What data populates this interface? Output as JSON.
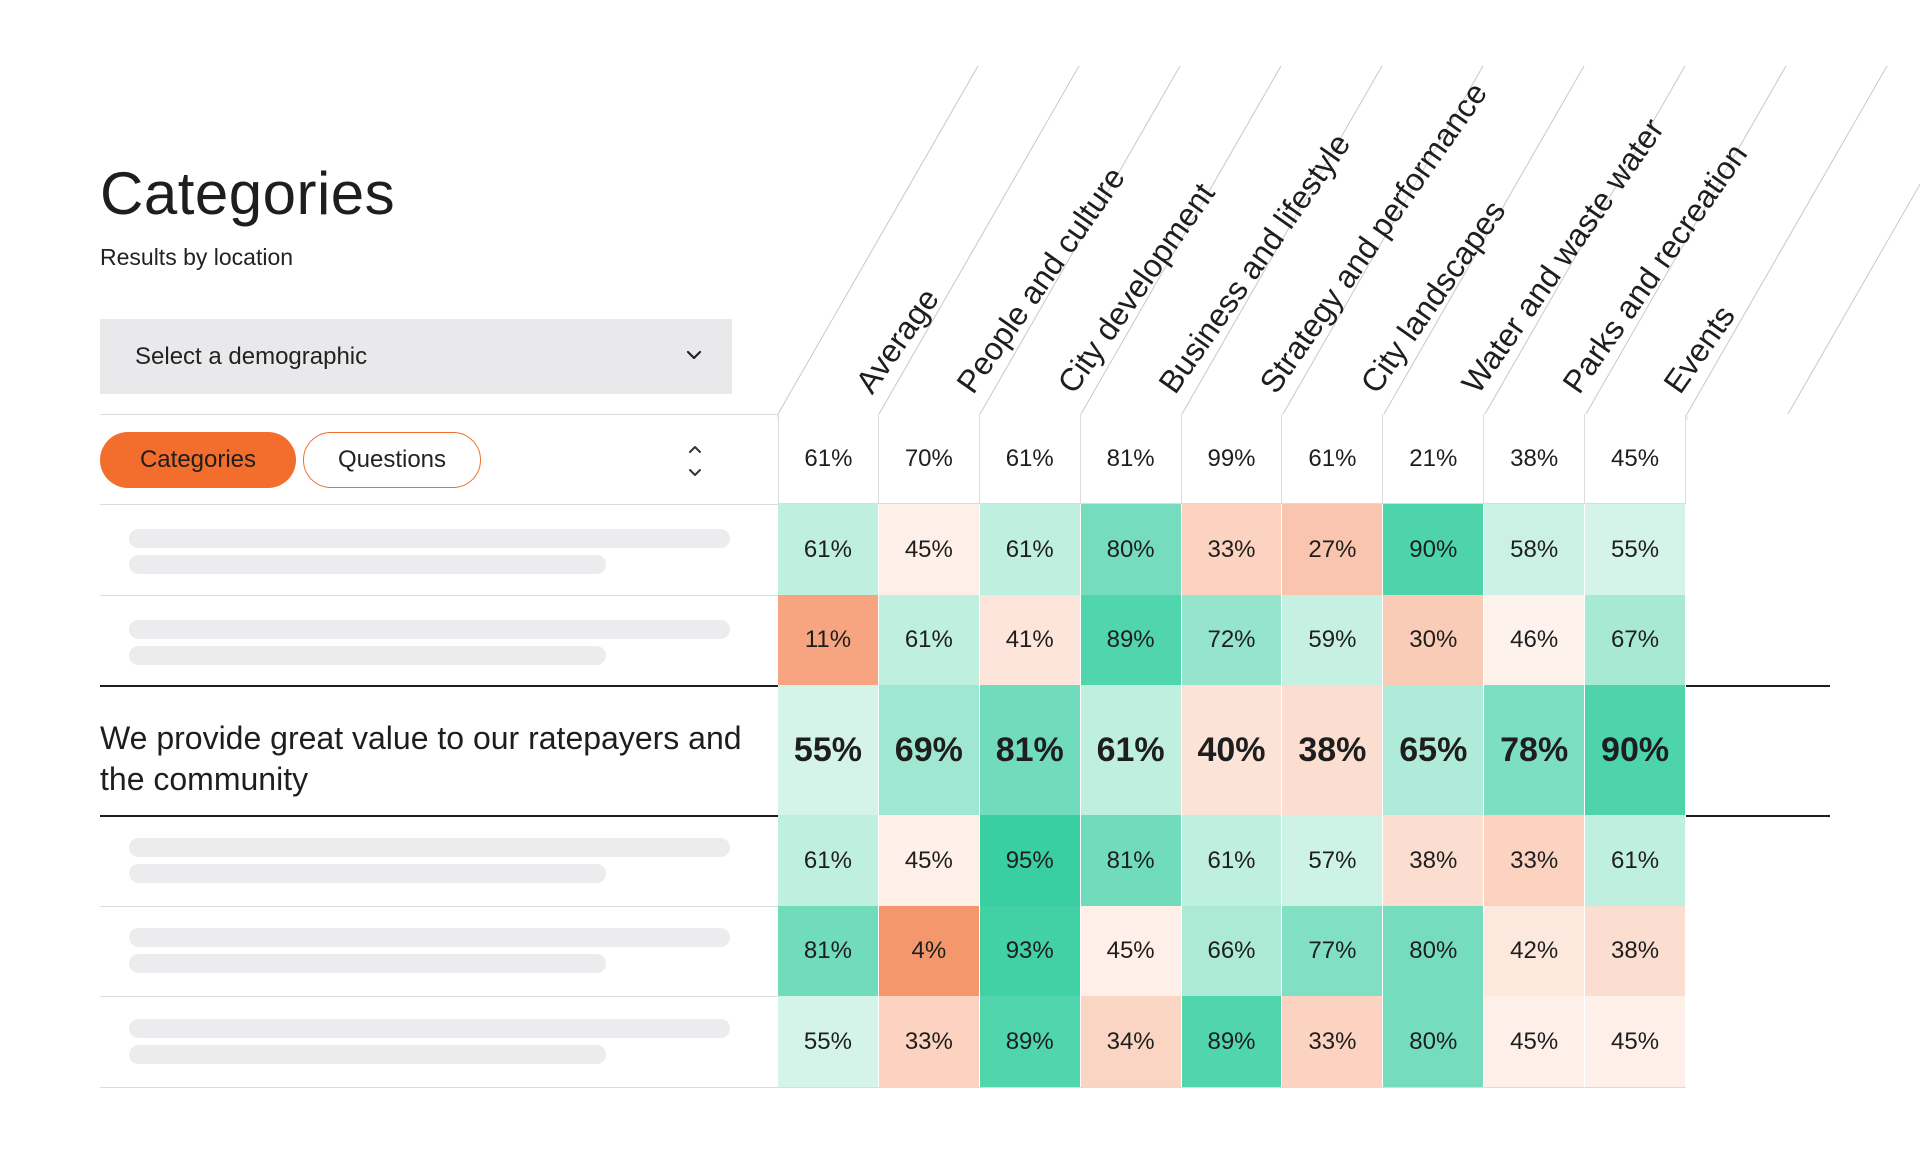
{
  "page": {
    "title": "Categories",
    "subtitle": "Results by location"
  },
  "demographic_select": {
    "label": "Select a demographic",
    "icon": "chevron-down-icon"
  },
  "view_toggle": {
    "categories_label": "Categories",
    "questions_label": "Questions",
    "sort_icon": "sort-up-down-icon"
  },
  "columns": [
    "Average",
    "People and culture",
    "City development",
    "Business and lifestyle",
    "Strategy and performance",
    "City landscapes",
    "Water and waste water",
    "Parks and recreation",
    "Events"
  ],
  "average_row": [
    "61%",
    "70%",
    "61%",
    "81%",
    "99%",
    "61%",
    "21%",
    "38%",
    "45%"
  ],
  "rows": [
    {
      "label": "",
      "placeholder": true,
      "values": [
        "61%",
        "45%",
        "61%",
        "80%",
        "33%",
        "27%",
        "90%",
        "58%",
        "55%"
      ]
    },
    {
      "label": "",
      "placeholder": true,
      "values": [
        "11%",
        "61%",
        "41%",
        "89%",
        "72%",
        "59%",
        "30%",
        "46%",
        "67%"
      ]
    },
    {
      "label": "We provide great value to our ratepayers and the community",
      "placeholder": false,
      "highlighted": true,
      "values": [
        "55%",
        "69%",
        "81%",
        "61%",
        "40%",
        "38%",
        "65%",
        "78%",
        "90%"
      ]
    },
    {
      "label": "",
      "placeholder": true,
      "values": [
        "61%",
        "45%",
        "95%",
        "81%",
        "61%",
        "57%",
        "38%",
        "33%",
        "61%"
      ]
    },
    {
      "label": "",
      "placeholder": true,
      "values": [
        "81%",
        "4%",
        "93%",
        "45%",
        "66%",
        "77%",
        "80%",
        "42%",
        "38%"
      ]
    },
    {
      "label": "",
      "placeholder": true,
      "values": [
        "55%",
        "33%",
        "89%",
        "34%",
        "89%",
        "33%",
        "80%",
        "45%",
        "45%"
      ]
    }
  ],
  "colors": {
    "accent": "#f36e2c",
    "green_strong": "#2dcc9c",
    "orange_strong": "#f5996a",
    "neutral": "#ffffff"
  }
}
